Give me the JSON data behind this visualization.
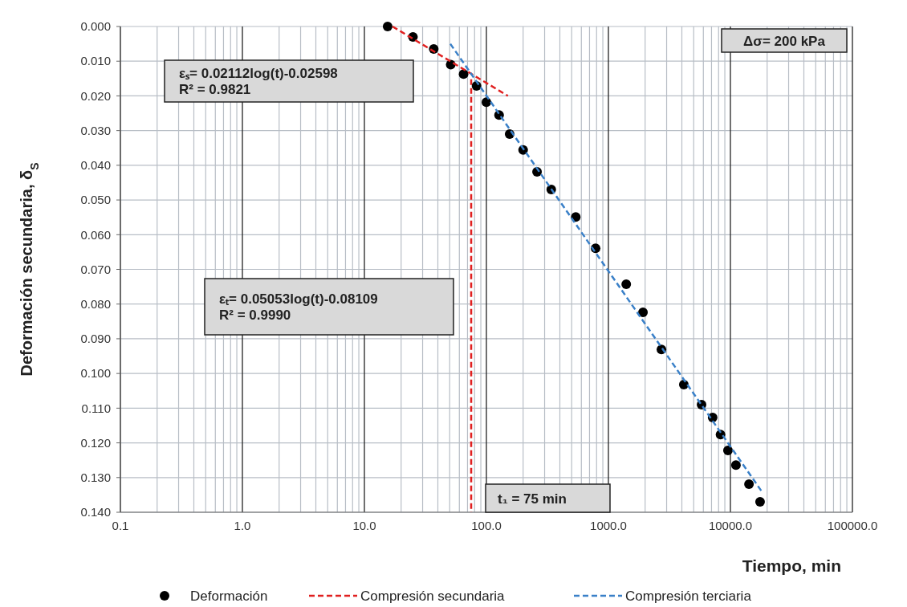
{
  "chart_data": {
    "type": "scatter",
    "xlabel": "Tiempo, min",
    "ylabel": "Deformación secundaria, δ$_{S}$",
    "log": "x",
    "grid": true,
    "legend": "bottom",
    "xlim": [
      0.1,
      100000
    ],
    "ylim": [
      0.14,
      0
    ],
    "xticks": [
      0.1,
      {
        "value": 1,
        "label": "1.0"
      },
      {
        "value": 10,
        "label": "10.0"
      },
      {
        "value": 100,
        "label": "100.0"
      },
      {
        "value": 1000,
        "label": "1000.0"
      },
      {
        "value": 10000,
        "label": "10000.0"
      },
      {
        "value": 100000,
        "label": "100000.0"
      }
    ],
    "yticks": [
      {
        "value": 0,
        "label": "0.000"
      },
      {
        "value": 0.01,
        "label": "0.010"
      },
      {
        "value": 0.02,
        "label": "0.020"
      },
      {
        "value": 0.03,
        "label": "0.030"
      },
      {
        "value": 0.04,
        "label": "0.040"
      },
      {
        "value": 0.05,
        "label": "0.050"
      },
      {
        "value": 0.06,
        "label": "0.060"
      },
      {
        "value": 0.07,
        "label": "0.070"
      },
      {
        "value": 0.08,
        "label": "0.080"
      },
      {
        "value": 0.09,
        "label": "0.090"
      },
      {
        "value": 0.1,
        "label": "0.100"
      },
      {
        "value": 0.11,
        "label": "0.110"
      },
      {
        "value": 0.12,
        "label": "0.120"
      },
      {
        "value": 0.13,
        "label": "0.130"
      },
      {
        "value": 0.14,
        "label": "0.140"
      }
    ],
    "series": [
      {
        "name": "Deformación",
        "marker": "circle",
        "color": "#000000",
        "x": [
          15.5,
          25,
          37,
          51,
          65,
          83,
          100,
          127,
          155,
          200,
          260,
          340,
          540,
          785,
          1400,
          1920,
          2720,
          4150,
          5800,
          7150,
          8300,
          9550,
          11100,
          14200,
          17500
        ],
        "values": [
          0,
          0.003,
          0.0065,
          0.011,
          0.0137,
          0.0171,
          0.0218,
          0.0255,
          0.031,
          0.0356,
          0.0419,
          0.047,
          0.0549,
          0.0639,
          0.0743,
          0.0824,
          0.0931,
          0.1032,
          0.109,
          0.1127,
          0.1176,
          0.1222,
          0.1264,
          0.1319,
          0.137
        ]
      },
      {
        "name": "Compresión secundaria",
        "type": "line",
        "marker": "none",
        "color": "#e02020",
        "line_style": "dashed",
        "x": [
          17,
          150
        ],
        "values": [
          0,
          0.02
        ]
      },
      {
        "name": "Compresión terciaria",
        "type": "line",
        "marker": "none",
        "color": "#3a80c8",
        "line_style": "dashed",
        "x": [
          50.6,
          18300
        ],
        "values": [
          0.005,
          0.1343
        ]
      }
    ],
    "ref_lines": [
      {
        "axis": "x",
        "value": 75,
        "label": "t₁ = 75 min",
        "color": "#e02020",
        "line_style": "dashed"
      }
    ],
    "annotations": [
      "εₛ= 0.02112log(t)-0.02598\nR² = 0.9821",
      "εₜ= 0.05053log(t)-0.08109\nR² = 0.9990",
      "Δσ= 200 kPa"
    ]
  }
}
